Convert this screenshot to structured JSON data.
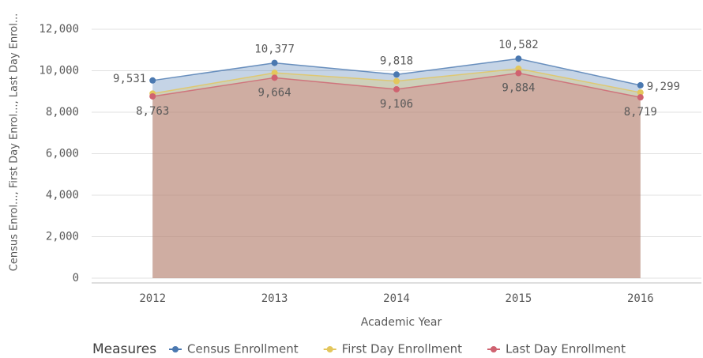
{
  "chart_data": {
    "type": "area",
    "x_label": "Academic Year",
    "y_label": "Census Enrol..., First Day Enrol..., Last Day Enrol...",
    "legend_title": "Measures",
    "categories": [
      "2012",
      "2013",
      "2014",
      "2015",
      "2016"
    ],
    "series": [
      {
        "name": "Census Enrollment",
        "color": "#4a78b0",
        "values": [
          9531,
          10377,
          9818,
          10582,
          9299
        ],
        "value_labels": [
          "9,531",
          "10,377",
          "9,818",
          "10,582",
          "9,299"
        ]
      },
      {
        "name": "First Day Enrollment",
        "color": "#e3c65c",
        "values": [
          8900,
          9900,
          9500,
          10100,
          8950
        ]
      },
      {
        "name": "Last Day Enrollment",
        "color": "#cf6270",
        "values": [
          8763,
          9664,
          9106,
          9884,
          8719
        ],
        "value_labels": [
          "8,763",
          "9,664",
          "9,106",
          "9,884",
          "8,719"
        ]
      }
    ],
    "ylim": [
      0,
      12000
    ],
    "yticks": [
      0,
      {
        "value": 2000,
        "label": "2,000"
      },
      {
        "value": 4000,
        "label": "4,000"
      },
      {
        "value": 6000,
        "label": "6,000"
      },
      {
        "value": 8000,
        "label": "8,000"
      },
      {
        "value": 10000,
        "label": "10,000"
      },
      {
        "value": 12000,
        "label": "12,000"
      }
    ],
    "grid": true
  }
}
